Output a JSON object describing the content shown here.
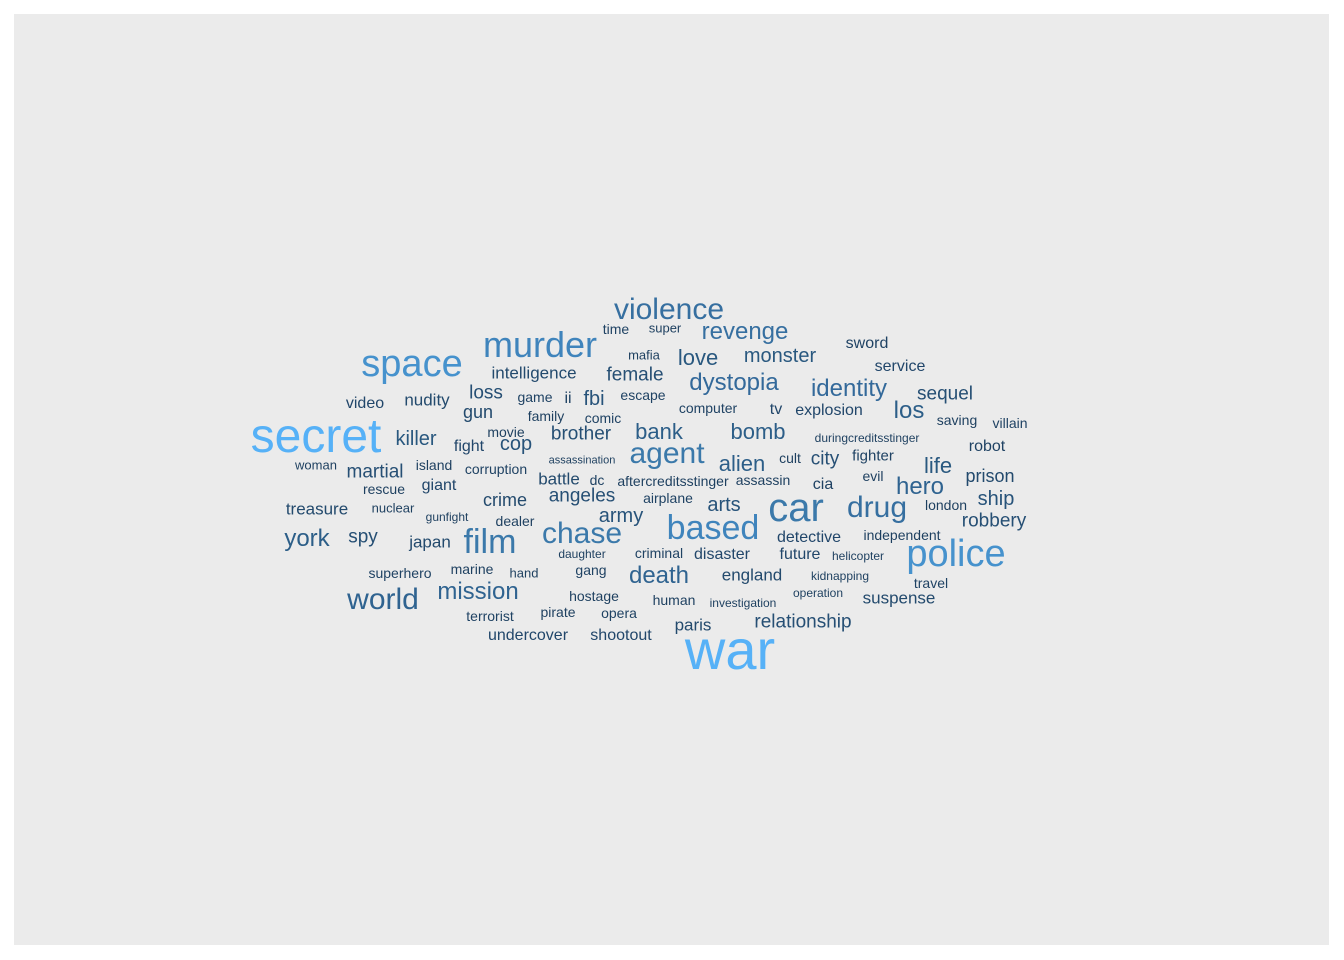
{
  "words": [
    {
      "text": "war",
      "size": 56,
      "color": "#56B1F7"
    },
    {
      "text": "secret",
      "size": 48,
      "color": "#56B1F7"
    },
    {
      "text": "police",
      "size": 38,
      "color": "#4692CD"
    },
    {
      "text": "car",
      "size": 40,
      "color": "#3B79AA"
    },
    {
      "text": "space",
      "size": 38,
      "color": "#4692CD"
    },
    {
      "text": "murder",
      "size": 36,
      "color": "#3F84BC"
    },
    {
      "text": "based",
      "size": 34,
      "color": "#3F84BC"
    },
    {
      "text": "film",
      "size": 34,
      "color": "#3B79AA"
    },
    {
      "text": "chase",
      "size": 30,
      "color": "#3B79AA"
    },
    {
      "text": "violence",
      "size": 30,
      "color": "#366FA0"
    },
    {
      "text": "agent",
      "size": 30,
      "color": "#3B79AA"
    },
    {
      "text": "drug",
      "size": 30,
      "color": "#366FA0"
    },
    {
      "text": "world",
      "size": 30,
      "color": "#2F6390"
    },
    {
      "text": "mission",
      "size": 24,
      "color": "#2F6390"
    },
    {
      "text": "revenge",
      "size": 24,
      "color": "#366FA0"
    },
    {
      "text": "dystopia",
      "size": 24,
      "color": "#33699A"
    },
    {
      "text": "identity",
      "size": 24,
      "color": "#33699A"
    },
    {
      "text": "death",
      "size": 24,
      "color": "#2F6390"
    },
    {
      "text": "hero",
      "size": 24,
      "color": "#2F6390"
    },
    {
      "text": "york",
      "size": 24,
      "color": "#2C5E88"
    },
    {
      "text": "los",
      "size": 24,
      "color": "#2C5E88"
    },
    {
      "text": "bank",
      "size": 22,
      "color": "#2C5E88"
    },
    {
      "text": "alien",
      "size": 22,
      "color": "#2C5E88"
    },
    {
      "text": "bomb",
      "size": 22,
      "color": "#2C5E88"
    },
    {
      "text": "life",
      "size": 22,
      "color": "#29587F"
    },
    {
      "text": "love",
      "size": 22,
      "color": "#29587F"
    },
    {
      "text": "monster",
      "size": 20,
      "color": "#29587F"
    },
    {
      "text": "killer",
      "size": 20,
      "color": "#29587F"
    },
    {
      "text": "fbi",
      "size": 20,
      "color": "#27537A"
    },
    {
      "text": "cop",
      "size": 20,
      "color": "#27537A"
    },
    {
      "text": "arts",
      "size": 20,
      "color": "#27537A"
    },
    {
      "text": "army",
      "size": 20,
      "color": "#27537A"
    },
    {
      "text": "ship",
      "size": 20,
      "color": "#27537A"
    },
    {
      "text": "loss",
      "size": 19,
      "color": "#264F74"
    },
    {
      "text": "brother",
      "size": 19,
      "color": "#264F74"
    },
    {
      "text": "female",
      "size": 19,
      "color": "#264F74"
    },
    {
      "text": "angeles",
      "size": 19,
      "color": "#264F74"
    },
    {
      "text": "spy",
      "size": 19,
      "color": "#264F74"
    },
    {
      "text": "martial",
      "size": 19,
      "color": "#264F74"
    },
    {
      "text": "sequel",
      "size": 19,
      "color": "#264F74"
    },
    {
      "text": "robbery",
      "size": 19,
      "color": "#264F74"
    },
    {
      "text": "relationship",
      "size": 19,
      "color": "#264F74"
    },
    {
      "text": "city",
      "size": 19,
      "color": "#264F74"
    },
    {
      "text": "prison",
      "size": 18,
      "color": "#234A6D"
    },
    {
      "text": "suspense",
      "size": 17,
      "color": "#234A6D"
    },
    {
      "text": "gun",
      "size": 18,
      "color": "#234A6D"
    },
    {
      "text": "crime",
      "size": 18,
      "color": "#234A6D"
    },
    {
      "text": "battle",
      "size": 17,
      "color": "#234A6D"
    },
    {
      "text": "nudity",
      "size": 17,
      "color": "#234A6D"
    },
    {
      "text": "intelligence",
      "size": 17,
      "color": "#234A6D"
    },
    {
      "text": "england",
      "size": 17,
      "color": "#234A6D"
    },
    {
      "text": "japan",
      "size": 17,
      "color": "#234A6D"
    },
    {
      "text": "paris",
      "size": 17,
      "color": "#234A6D"
    },
    {
      "text": "treasure",
      "size": 17,
      "color": "#234A6D"
    },
    {
      "text": "video",
      "size": 16,
      "color": "#21466A"
    },
    {
      "text": "shootout",
      "size": 16,
      "color": "#21466A"
    },
    {
      "text": "undercover",
      "size": 16,
      "color": "#21466A"
    },
    {
      "text": "giant",
      "size": 16,
      "color": "#21466A"
    },
    {
      "text": "tv",
      "size": 16,
      "color": "#21466A"
    },
    {
      "text": "detective",
      "size": 16,
      "color": "#21466A"
    },
    {
      "text": "explosion",
      "size": 16,
      "color": "#21466A"
    },
    {
      "text": "disaster",
      "size": 16,
      "color": "#21466A"
    },
    {
      "text": "fight",
      "size": 16,
      "color": "#21466A"
    },
    {
      "text": "future",
      "size": 16,
      "color": "#21466A"
    },
    {
      "text": "service",
      "size": 16,
      "color": "#21466A"
    },
    {
      "text": "sword",
      "size": 16,
      "color": "#1F4263"
    },
    {
      "text": "robot",
      "size": 16,
      "color": "#1F4263"
    },
    {
      "text": "ii",
      "size": 16,
      "color": "#1F4263"
    },
    {
      "text": "cia",
      "size": 16,
      "color": "#1F4263"
    },
    {
      "text": "fighter",
      "size": 15,
      "color": "#1F4263"
    },
    {
      "text": "superhero",
      "size": 14,
      "color": "#1F4263"
    },
    {
      "text": "corruption",
      "size": 14,
      "color": "#1F4263"
    },
    {
      "text": "opera",
      "size": 14,
      "color": "#1F4263"
    },
    {
      "text": "time",
      "size": 14,
      "color": "#1F4263"
    },
    {
      "text": "escape",
      "size": 14,
      "color": "#1F4263"
    },
    {
      "text": "game",
      "size": 14,
      "color": "#1F4263"
    },
    {
      "text": "airplane",
      "size": 14,
      "color": "#1F4263"
    },
    {
      "text": "computer",
      "size": 14,
      "color": "#1F4263"
    },
    {
      "text": "comic",
      "size": 14,
      "color": "#1F4263"
    },
    {
      "text": "dc",
      "size": 14,
      "color": "#1F4263"
    },
    {
      "text": "gang",
      "size": 14,
      "color": "#1F4263"
    },
    {
      "text": "travel",
      "size": 14,
      "color": "#1F4263"
    },
    {
      "text": "villain",
      "size": 14,
      "color": "#1F4263"
    },
    {
      "text": "terrorist",
      "size": 14,
      "color": "#1F4263"
    },
    {
      "text": "criminal",
      "size": 14,
      "color": "#1F4263"
    },
    {
      "text": "hostage",
      "size": 14,
      "color": "#1D3F5F"
    },
    {
      "text": "human",
      "size": 14,
      "color": "#1D3F5F"
    },
    {
      "text": "marine",
      "size": 14,
      "color": "#1D3F5F"
    },
    {
      "text": "assassin",
      "size": 14,
      "color": "#1D3F5F"
    },
    {
      "text": "independent",
      "size": 14,
      "color": "#1D3F5F"
    },
    {
      "text": "aftercreditsstinger",
      "size": 14,
      "color": "#1D3F5F"
    },
    {
      "text": "dealer",
      "size": 14,
      "color": "#1D3F5F"
    },
    {
      "text": "rescue",
      "size": 14,
      "color": "#1D3F5F"
    },
    {
      "text": "movie",
      "size": 14,
      "color": "#1D3F5F"
    },
    {
      "text": "family",
      "size": 14,
      "color": "#1D3F5F"
    },
    {
      "text": "evil",
      "size": 14,
      "color": "#1D3F5F"
    },
    {
      "text": "island",
      "size": 14,
      "color": "#1D3F5F"
    },
    {
      "text": "london",
      "size": 14,
      "color": "#1D3F5F"
    },
    {
      "text": "saving",
      "size": 14,
      "color": "#1D3F5F"
    },
    {
      "text": "cult",
      "size": 14,
      "color": "#1D3F5F"
    },
    {
      "text": "pirate",
      "size": 14,
      "color": "#1D3F5F"
    },
    {
      "text": "nuclear",
      "size": 13,
      "color": "#1D3F5F"
    },
    {
      "text": "hand",
      "size": 13,
      "color": "#1D3F5F"
    },
    {
      "text": "super",
      "size": 13,
      "color": "#1D3F5F"
    },
    {
      "text": "woman",
      "size": 13,
      "color": "#1D3F5F"
    },
    {
      "text": "mafia",
      "size": 13,
      "color": "#1D3F5F"
    },
    {
      "text": "helicopter",
      "size": 12,
      "color": "#1D3F5F"
    },
    {
      "text": "kidnapping",
      "size": 12,
      "color": "#1D3F5F"
    },
    {
      "text": "operation",
      "size": 12,
      "color": "#1D3F5F"
    },
    {
      "text": "investigation",
      "size": 12,
      "color": "#1D3F5F"
    },
    {
      "text": "duringcreditsstinger",
      "size": 12,
      "color": "#1D3F5F"
    },
    {
      "text": "gunfight",
      "size": 12,
      "color": "#1D3F5F"
    },
    {
      "text": "daughter",
      "size": 12,
      "color": "#1D3F5F"
    },
    {
      "text": "assassination",
      "size": 11,
      "color": "#1D3F5F"
    }
  ]
}
